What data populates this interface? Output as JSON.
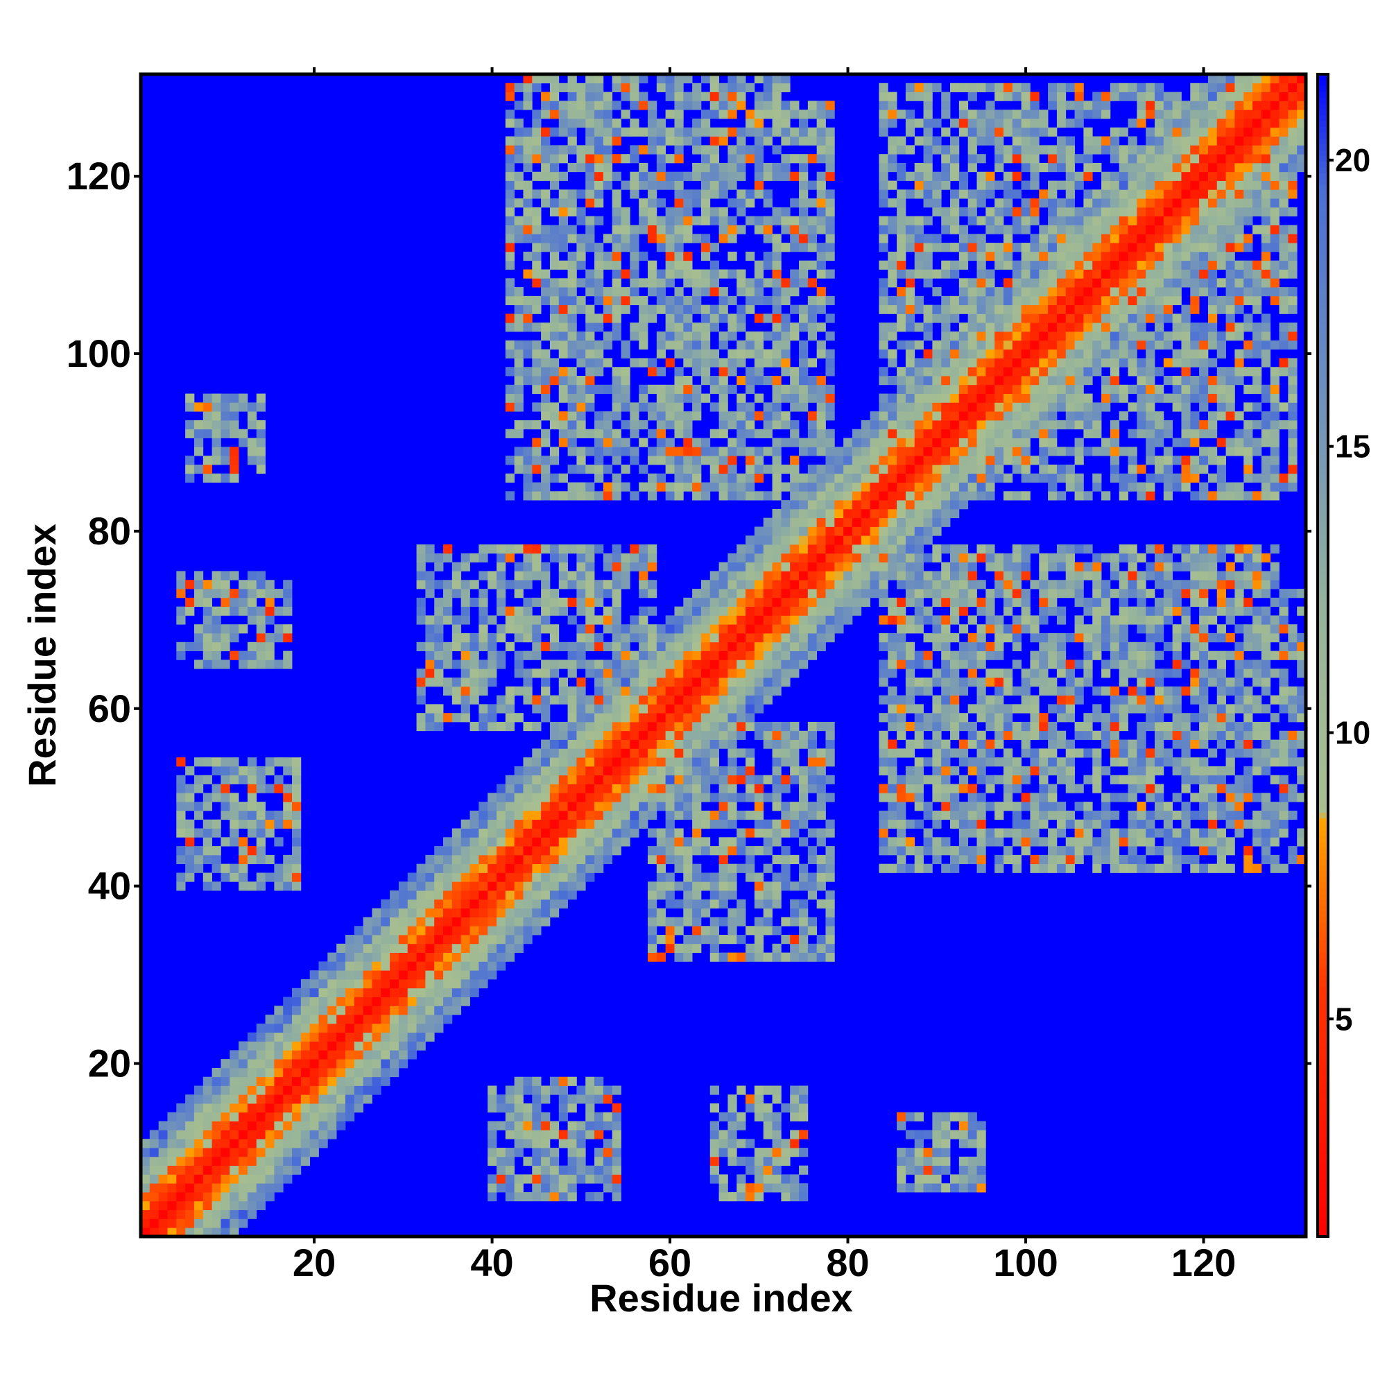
{
  "chart_data": {
    "type": "heatmap",
    "title": "",
    "xlabel": "Residue index",
    "ylabel": "Residue index",
    "xlim": [
      1,
      131
    ],
    "ylim": [
      1,
      131
    ],
    "n_residues": 131,
    "x_ticks": [
      {
        "value": 20,
        "label": "20"
      },
      {
        "value": 40,
        "label": "40"
      },
      {
        "value": 60,
        "label": "60"
      },
      {
        "value": 80,
        "label": "80"
      },
      {
        "value": 100,
        "label": "100"
      },
      {
        "value": 120,
        "label": "120"
      }
    ],
    "y_ticks": [
      {
        "value": 20,
        "label": "20"
      },
      {
        "value": 40,
        "label": "40"
      },
      {
        "value": 60,
        "label": "60"
      },
      {
        "value": 80,
        "label": "80"
      },
      {
        "value": 100,
        "label": "100"
      },
      {
        "value": 120,
        "label": "120"
      }
    ],
    "colorbar": {
      "range": [
        1.2,
        21.5
      ],
      "ticks": [
        {
          "value": 5,
          "label": "5"
        },
        {
          "value": 10,
          "label": "10"
        },
        {
          "value": 15,
          "label": "15"
        },
        {
          "value": 20,
          "label": "20"
        }
      ],
      "stops": [
        {
          "value": 1.2,
          "color": "#ff0000"
        },
        {
          "value": 5.5,
          "color": "#ff3300"
        },
        {
          "value": 8.5,
          "color": "#ffa500"
        },
        {
          "value": 8.6,
          "color": "#a9bf8f"
        },
        {
          "value": 12.0,
          "color": "#96b49b"
        },
        {
          "value": 16.0,
          "color": "#6d8fbe"
        },
        {
          "value": 19.5,
          "color": "#4a6fd6"
        },
        {
          "value": 21.5,
          "color": "#0000ff"
        }
      ]
    },
    "contact_regions": [
      {
        "x_range": [
          1,
          131
        ],
        "y_range": [
          1,
          131
        ],
        "description": "main diagonal band"
      },
      {
        "x_range": [
          42,
          72
        ],
        "y_range": [
          88,
          130
        ]
      },
      {
        "x_range": [
          42,
          58
        ],
        "y_range": [
          62,
          78
        ]
      },
      {
        "x_range": [
          58,
          78
        ],
        "y_range": [
          32,
          56
        ]
      },
      {
        "x_range": [
          84,
          128
        ],
        "y_range": [
          42,
          78
        ]
      },
      {
        "x_range": [
          84,
          128
        ],
        "y_range": [
          84,
          130
        ]
      },
      {
        "x_range": [
          5,
          18
        ],
        "y_range": [
          42,
          54
        ]
      },
      {
        "x_range": [
          40,
          54
        ],
        "y_range": [
          5,
          18
        ]
      },
      {
        "x_range": [
          65,
          75
        ],
        "y_range": [
          5,
          17
        ]
      },
      {
        "x_range": [
          86,
          95
        ],
        "y_range": [
          6,
          14
        ]
      },
      {
        "x_range": [
          6,
          13
        ],
        "y_range": [
          67,
          75
        ]
      },
      {
        "x_range": [
          6,
          14
        ],
        "y_range": [
          87,
          95
        ]
      },
      {
        "x_range": [
          118,
          131
        ],
        "y_range": [
          43,
          73
        ]
      }
    ]
  }
}
